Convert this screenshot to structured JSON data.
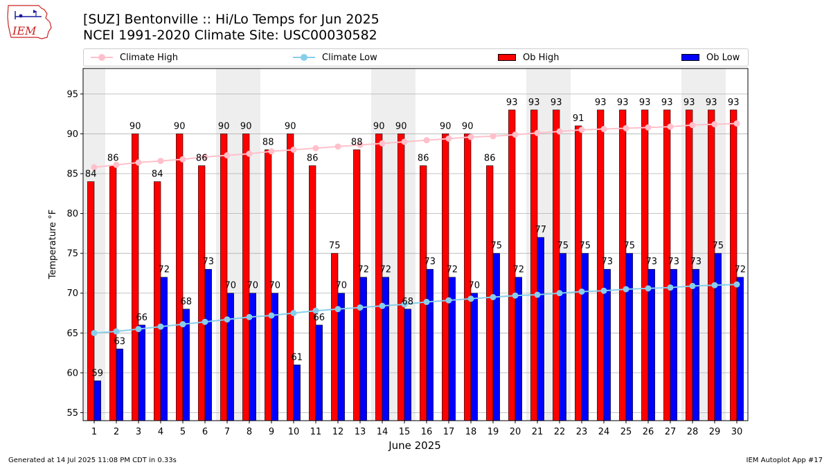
{
  "header": {
    "logo_text": "IEM",
    "title_line1": "[SUZ] Bentonville :: Hi/Lo Temps for Jun 2025",
    "title_line2": "NCEI 1991-2020 Climate Site: USC00030582"
  },
  "legend": {
    "climate_high": "Climate High",
    "climate_low": "Climate Low",
    "ob_high": "Ob High",
    "ob_low": "Ob Low"
  },
  "colors": {
    "ob_high": "#ff0000",
    "ob_low": "#0000ff",
    "climate_high": "#ffc0cb",
    "climate_low": "#87ceeb",
    "weekend_shade": "#eeeeee",
    "grid": "#b0b0b0"
  },
  "chart_data": {
    "type": "bar",
    "xlabel": "June 2025",
    "ylabel": "Temperature °F",
    "ylim": [
      54,
      98.2
    ],
    "yticks": [
      55,
      60,
      65,
      70,
      75,
      80,
      85,
      90,
      95
    ],
    "grid": "horizontal",
    "legend_position": "top",
    "shaded_days": [
      1,
      7,
      8,
      14,
      15,
      21,
      22,
      28,
      29
    ],
    "categories": [
      "1",
      "2",
      "3",
      "4",
      "5",
      "6",
      "7",
      "8",
      "9",
      "10",
      "11",
      "12",
      "13",
      "14",
      "15",
      "16",
      "17",
      "18",
      "19",
      "20",
      "21",
      "22",
      "23",
      "24",
      "25",
      "26",
      "27",
      "28",
      "29",
      "30"
    ],
    "series": [
      {
        "name": "Ob High",
        "kind": "bar",
        "values": [
          84,
          86,
          90,
          84,
          90,
          86,
          90,
          90,
          88,
          90,
          86,
          75,
          88,
          90,
          90,
          86,
          90,
          90,
          86,
          93,
          93,
          93,
          91,
          93,
          93,
          93,
          93,
          93,
          93,
          93
        ],
        "labels": [
          "84",
          "86",
          "90",
          "84",
          "90",
          "86",
          "90",
          "90",
          "88",
          "90",
          "86",
          "75",
          "88",
          "90",
          "90",
          "86",
          "90",
          "90",
          "86",
          "93",
          "93",
          "93",
          "91",
          "93",
          "93",
          "93",
          "93",
          "93",
          "93",
          "93"
        ]
      },
      {
        "name": "Ob Low",
        "kind": "bar",
        "values": [
          59,
          63,
          66,
          72,
          68,
          73,
          70,
          70,
          70,
          61,
          66,
          70,
          72,
          72,
          68,
          73,
          72,
          70,
          75,
          72,
          77,
          75,
          75,
          73,
          75,
          73,
          73,
          73,
          75,
          72
        ],
        "labels": [
          "59",
          "63",
          "66",
          "72",
          "68",
          "73",
          "70",
          "70",
          "70",
          "61",
          "66",
          "70",
          "72",
          "72",
          "68",
          "73",
          "72",
          "70",
          "75",
          "72",
          "77",
          "75",
          "75",
          "73",
          "75",
          "73",
          "73",
          "73",
          "75",
          "72"
        ]
      },
      {
        "name": "Climate High",
        "kind": "line",
        "values": [
          85.8,
          86.1,
          86.4,
          86.6,
          86.8,
          87.1,
          87.3,
          87.5,
          87.8,
          88.0,
          88.2,
          88.4,
          88.6,
          88.8,
          89.0,
          89.2,
          89.4,
          89.6,
          89.7,
          89.9,
          90.1,
          90.3,
          90.5,
          90.6,
          90.7,
          90.8,
          90.9,
          91.1,
          91.2,
          91.3
        ]
      },
      {
        "name": "Climate Low",
        "kind": "line",
        "values": [
          65.0,
          65.2,
          65.5,
          65.8,
          66.1,
          66.4,
          66.7,
          67.0,
          67.2,
          67.5,
          67.8,
          68.0,
          68.2,
          68.4,
          68.6,
          68.9,
          69.1,
          69.3,
          69.5,
          69.7,
          69.8,
          70.0,
          70.2,
          70.3,
          70.5,
          70.6,
          70.7,
          70.9,
          71.0,
          71.1
        ]
      }
    ]
  },
  "footer": {
    "generated": "Generated at 14 Jul 2025 11:08 PM CDT in 0.33s",
    "app": "IEM Autoplot App #17"
  }
}
